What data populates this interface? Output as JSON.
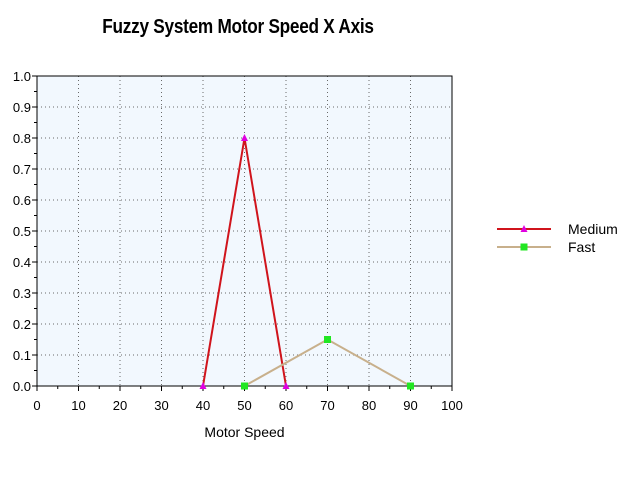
{
  "chart_data": {
    "type": "line",
    "title": "Fuzzy System Motor Speed X Axis",
    "xlabel": "Motor Speed",
    "ylabel": "",
    "xlim": [
      0,
      100
    ],
    "ylim": [
      0,
      1.0
    ],
    "x_ticks": [
      "0",
      "10",
      "20",
      "30",
      "40",
      "50",
      "60",
      "70",
      "80",
      "90",
      "100"
    ],
    "y_ticks": [
      "0.0",
      "0.1",
      "0.2",
      "0.3",
      "0.4",
      "0.5",
      "0.6",
      "0.7",
      "0.8",
      "0.9",
      "1.0"
    ],
    "grid": true,
    "legend_position": "right",
    "plot_background": "#f2f8fe",
    "series": [
      {
        "name": "Medium",
        "color": "#d0141c",
        "marker": "triangle",
        "marker_color": "#e000e0",
        "points": [
          [
            40,
            0.0
          ],
          [
            50,
            0.8
          ],
          [
            60,
            0.0
          ]
        ]
      },
      {
        "name": "Fast",
        "color": "#c8b08c",
        "marker": "square",
        "marker_color": "#22e622",
        "points": [
          [
            50,
            0.0
          ],
          [
            70,
            0.15
          ],
          [
            90,
            0.0
          ]
        ]
      }
    ]
  }
}
